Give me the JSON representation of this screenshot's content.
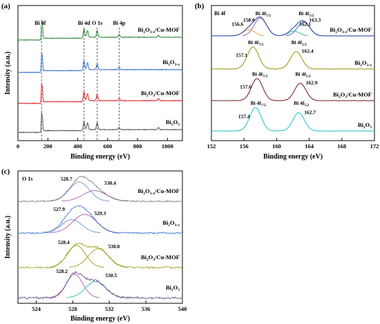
{
  "chart_data": [
    {
      "panel": "(a)",
      "type": "line",
      "xlabel": "Binding energy (eV)",
      "ylabel": "Intensity (a.u.)",
      "xlim": [
        0,
        1100
      ],
      "x_ticks": [
        "0",
        "200",
        "400",
        "600",
        "800",
        "1000"
      ],
      "grid": false,
      "peak_markers": [
        {
          "name": "Bi 4f",
          "x": 158
        },
        {
          "name": "Bi 4d",
          "x": 442
        },
        {
          "name": "O 1s",
          "x": 530
        },
        {
          "name": "Bi 4p",
          "x": 677
        }
      ],
      "series": [
        {
          "name": "Bi2O3-x/Cu-MOF",
          "label_main": "Bi",
          "label_sub1": "2",
          "label_mid": "O",
          "label_sub2": "3-x",
          "label_tail": "/Cu-MOF",
          "color": "#2e8b3a",
          "peaks": [
            {
              "x": 158,
              "h": 28
            },
            {
              "x": 164,
              "h": 20
            },
            {
              "x": 442,
              "h": 14
            },
            {
              "x": 465,
              "h": 10
            },
            {
              "x": 530,
              "h": 10
            },
            {
              "x": 677,
              "h": 4
            },
            {
              "x": 940,
              "h": 3
            }
          ]
        },
        {
          "name": "Bi2O3-x",
          "label_main": "Bi",
          "label_sub1": "2",
          "label_mid": "O",
          "label_sub2": "3-x",
          "label_tail": "",
          "color": "#2f6fd0",
          "peaks": [
            {
              "x": 158,
              "h": 28
            },
            {
              "x": 164,
              "h": 20
            },
            {
              "x": 442,
              "h": 14
            },
            {
              "x": 465,
              "h": 10
            },
            {
              "x": 530,
              "h": 8
            },
            {
              "x": 677,
              "h": 3
            }
          ]
        },
        {
          "name": "Bi2O3/Cu-MOF",
          "label_main": "Bi",
          "label_sub1": "2",
          "label_mid": "O",
          "label_sub2": "3",
          "label_tail": "/Cu-MOF",
          "color": "#e0242a",
          "peaks": [
            {
              "x": 158,
              "h": 28
            },
            {
              "x": 164,
              "h": 20
            },
            {
              "x": 442,
              "h": 14
            },
            {
              "x": 465,
              "h": 10
            },
            {
              "x": 530,
              "h": 9
            },
            {
              "x": 677,
              "h": 3
            },
            {
              "x": 940,
              "h": 3
            }
          ]
        },
        {
          "name": "Bi2O3",
          "label_main": "Bi",
          "label_sub1": "2",
          "label_mid": "O",
          "label_sub2": "3",
          "label_tail": "",
          "color": "#555555",
          "peaks": [
            {
              "x": 158,
              "h": 28
            },
            {
              "x": 164,
              "h": 20
            },
            {
              "x": 442,
              "h": 14
            },
            {
              "x": 465,
              "h": 10
            },
            {
              "x": 530,
              "h": 10
            },
            {
              "x": 677,
              "h": 3
            },
            {
              "x": 940,
              "h": 3
            }
          ]
        }
      ]
    },
    {
      "panel": "(b)",
      "type": "line",
      "title": "Bi 4f",
      "xlabel": "Binding energy (eV)",
      "xlim": [
        152,
        172
      ],
      "x_ticks": [
        "152",
        "156",
        "160",
        "164",
        "168",
        "172"
      ],
      "grid": false,
      "series": [
        {
          "name": "Bi2O3-x/Cu-MOF",
          "label_main": "Bi",
          "label_sub1": "2",
          "label_mid": "O",
          "label_sub2": "3-x",
          "label_tail": "/Cu-MOF",
          "color": "#2e4aa6",
          "components": [
            {
              "center": 158.0,
              "sigma": 0.75,
              "amp": 1.0,
              "color": "#b05aa8"
            },
            {
              "center": 156.6,
              "sigma": 0.7,
              "amp": 0.35,
              "color": "#e8a23a"
            },
            {
              "center": 163.3,
              "sigma": 0.75,
              "amp": 0.78,
              "color": "#2f6fd0"
            },
            {
              "center": 162.1,
              "sigma": 0.7,
              "amp": 0.26,
              "color": "#2fb7b0"
            }
          ],
          "annotations": [
            {
              "text": "156.6",
              "x": 156.6
            },
            {
              "text": "158.0",
              "x": 158.0
            },
            {
              "text": "162.1",
              "x": 162.1
            },
            {
              "text": "163.3",
              "x": 163.3
            }
          ],
          "label_7_2": "Bi 4f",
          "sub_7_2": "7/2",
          "label_5_2": "Bi 4f",
          "sub_5_2": "5/2"
        },
        {
          "name": "Bi2O3-x",
          "label_main": "Bi",
          "label_sub1": "2",
          "label_mid": "O",
          "label_sub2": "3-x",
          "label_tail": "",
          "color": "#a09a1a",
          "components": [
            {
              "center": 157.1,
              "sigma": 0.7,
              "amp": 1.0,
              "color": "#a09a1a"
            },
            {
              "center": 162.4,
              "sigma": 0.7,
              "amp": 0.78,
              "color": "#a09a1a"
            }
          ],
          "annotations": [
            {
              "text": "157.1",
              "x": 157.1
            },
            {
              "text": "162.4",
              "x": 162.4
            }
          ],
          "label_7_2": "Bi 4f",
          "sub_7_2": "7/2",
          "label_5_2": "Bi 4f",
          "sub_5_2": "5/2"
        },
        {
          "name": "Bi2O3/Cu-MOF",
          "label_main": "Bi",
          "label_sub1": "2",
          "label_mid": "O",
          "label_sub2": "3",
          "label_tail": "/Cu-MOF",
          "color": "#7a2a2a",
          "components": [
            {
              "center": 157.6,
              "sigma": 0.7,
              "amp": 1.0,
              "color": "#7a2a2a"
            },
            {
              "center": 162.9,
              "sigma": 0.7,
              "amp": 0.78,
              "color": "#7a2a2a"
            }
          ],
          "annotations": [
            {
              "text": "157.6",
              "x": 157.6
            },
            {
              "text": "162.9",
              "x": 162.9
            }
          ],
          "label_7_2": "Bi 4f",
          "sub_7_2": "7/2",
          "label_5_2": "Bi 4f",
          "sub_5_2": "5/2"
        },
        {
          "name": "Bi2O3",
          "label_main": "Bi",
          "label_sub1": "2",
          "label_mid": "O",
          "label_sub2": "3",
          "label_tail": "",
          "color": "#31c4d0",
          "components": [
            {
              "center": 157.4,
              "sigma": 0.7,
              "amp": 1.0,
              "color": "#31c4d0"
            },
            {
              "center": 162.7,
              "sigma": 0.7,
              "amp": 0.78,
              "color": "#31c4d0"
            }
          ],
          "annotations": [
            {
              "text": "157.4",
              "x": 157.4
            },
            {
              "text": "162.7",
              "x": 162.7
            }
          ],
          "label_7_2": "Bi 4f",
          "sub_7_2": "7/2",
          "label_5_2": "Bi 4f",
          "sub_5_2": "5/2"
        }
      ]
    },
    {
      "panel": "(c)",
      "type": "line",
      "title": "O 1s",
      "xlabel": "Binding energy (eV)",
      "ylabel": "Intensity (a.u.)",
      "xlim": [
        522,
        540
      ],
      "x_ticks": [
        "524",
        "528",
        "532",
        "536",
        "540"
      ],
      "x_tick_values": [
        524,
        528,
        532,
        536,
        540
      ],
      "grid": false,
      "series": [
        {
          "name": "Bi2O3-x/Cu-MOF",
          "label_main": "Bi",
          "label_sub1": "2",
          "label_mid": "O",
          "label_sub2": "3-x",
          "label_tail": "/Cu-MOF",
          "color": "#7a7a7a",
          "components": [
            {
              "center": 528.7,
              "sigma": 1.1,
              "amp": 1.0,
              "color": "#6a8fd0"
            },
            {
              "center": 530.4,
              "sigma": 1.3,
              "amp": 0.55,
              "color": "#b05aa8"
            }
          ],
          "annotations": [
            {
              "text": "528.7",
              "x": 528.7
            },
            {
              "text": "530.4",
              "x": 530.4
            }
          ]
        },
        {
          "name": "Bi2O3-x",
          "label_main": "Bi",
          "label_sub1": "2",
          "label_mid": "O",
          "label_sub2": "3-x",
          "label_tail": "",
          "color": "#2f6fd0",
          "components": [
            {
              "center": 527.9,
              "sigma": 1.1,
              "amp": 0.65,
              "color": "#6a8fd0"
            },
            {
              "center": 529.3,
              "sigma": 1.3,
              "amp": 0.9,
              "color": "#b05aa8"
            }
          ],
          "annotations": [
            {
              "text": "527.9",
              "x": 527.9
            },
            {
              "text": "529.3",
              "x": 529.3
            }
          ]
        },
        {
          "name": "Bi2O3/Cu-MOF",
          "label_main": "Bi",
          "label_sub1": "2",
          "label_mid": "O",
          "label_sub2": "3",
          "label_tail": "/Cu-MOF",
          "color": "#a09a1a",
          "components": [
            {
              "center": 528.4,
              "sigma": 1.0,
              "amp": 1.0,
              "color": "#a09a1a"
            },
            {
              "center": 530.8,
              "sigma": 1.1,
              "amp": 0.85,
              "color": "#a09a1a"
            }
          ],
          "annotations": [
            {
              "text": "528.4",
              "x": 528.4
            },
            {
              "text": "530.8",
              "x": 530.8
            }
          ]
        },
        {
          "name": "Bi2O3",
          "label_main": "Bi",
          "label_sub1": "2",
          "label_mid": "O",
          "label_sub2": "3",
          "label_tail": "",
          "color": "#5a3a7a",
          "components": [
            {
              "center": 528.2,
              "sigma": 0.9,
              "amp": 1.0,
              "color": "#b05aa8"
            },
            {
              "center": 530.5,
              "sigma": 1.1,
              "amp": 0.7,
              "color": "#2fb7b0"
            }
          ],
          "annotations": [
            {
              "text": "528.2",
              "x": 528.2
            },
            {
              "text": "530.5",
              "x": 530.5
            }
          ]
        }
      ]
    }
  ]
}
